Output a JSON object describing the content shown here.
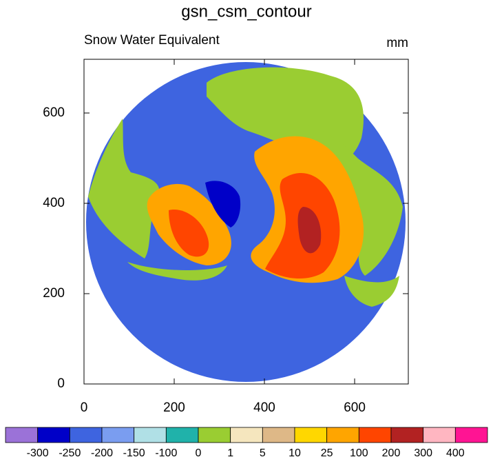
{
  "chart_data": {
    "type": "contour",
    "title": "gsn_csm_contour",
    "subtitle_left": "Snow Water Equivalent",
    "subtitle_right": "mm",
    "xlim": [
      0,
      719
    ],
    "ylim": [
      0,
      719
    ],
    "xticks": [
      0,
      200,
      400,
      600
    ],
    "yticks": [
      0,
      200,
      400,
      600
    ],
    "levels": [
      -300,
      -250,
      -200,
      -150,
      -100,
      0,
      1,
      5,
      10,
      25,
      100,
      200,
      300,
      400
    ],
    "colors": [
      "#9b72d8",
      "#0000c8",
      "#3e64e0",
      "#7a9df0",
      "#b0e0e6",
      "#20b2aa",
      "#9acd32",
      "#f5e6be",
      "#deb887",
      "#ffd700",
      "#ffa500",
      "#ff4500",
      "#b22222",
      "#ffb6c1",
      "#ff1493"
    ]
  }
}
